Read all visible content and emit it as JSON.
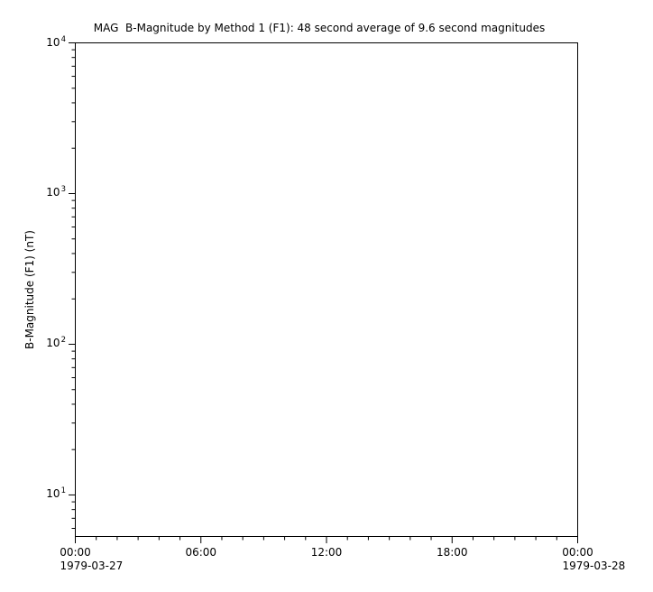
{
  "colors": {
    "background": "#ffffff",
    "axis": "#000000",
    "text": "#000000"
  },
  "chart_data": {
    "type": "line",
    "title": "MAG  B-Magnitude by Method 1 (F1): 48 second average of 9.6 second magnitudes",
    "xlabel": "",
    "ylabel": "B-Magnitude (F1) (nT)",
    "series": [],
    "grid": false,
    "legend": false,
    "x_axis": {
      "scale": "linear",
      "unit": "time-of-day",
      "range_hours": [
        0,
        24
      ],
      "minor_tick_interval_hours": 1,
      "major_ticks": [
        {
          "hour": 0,
          "label": "00:00",
          "date": "1979-03-27"
        },
        {
          "hour": 6,
          "label": "06:00"
        },
        {
          "hour": 12,
          "label": "12:00"
        },
        {
          "hour": 18,
          "label": "18:00"
        },
        {
          "hour": 24,
          "label": "00:00",
          "date": "1979-03-28"
        }
      ]
    },
    "y_axis": {
      "scale": "log",
      "ylim": [
        5.3,
        10000
      ],
      "major_ticks": [
        {
          "value": 10,
          "label_base": "10",
          "label_exponent": "1"
        },
        {
          "value": 100,
          "label_base": "10",
          "label_exponent": "2"
        },
        {
          "value": 1000,
          "label_base": "10",
          "label_exponent": "3"
        },
        {
          "value": 10000,
          "label_base": "10",
          "label_exponent": "4"
        }
      ],
      "minor_tick_mantissas": [
        2,
        3,
        4,
        5,
        6,
        7,
        8,
        9
      ]
    }
  }
}
